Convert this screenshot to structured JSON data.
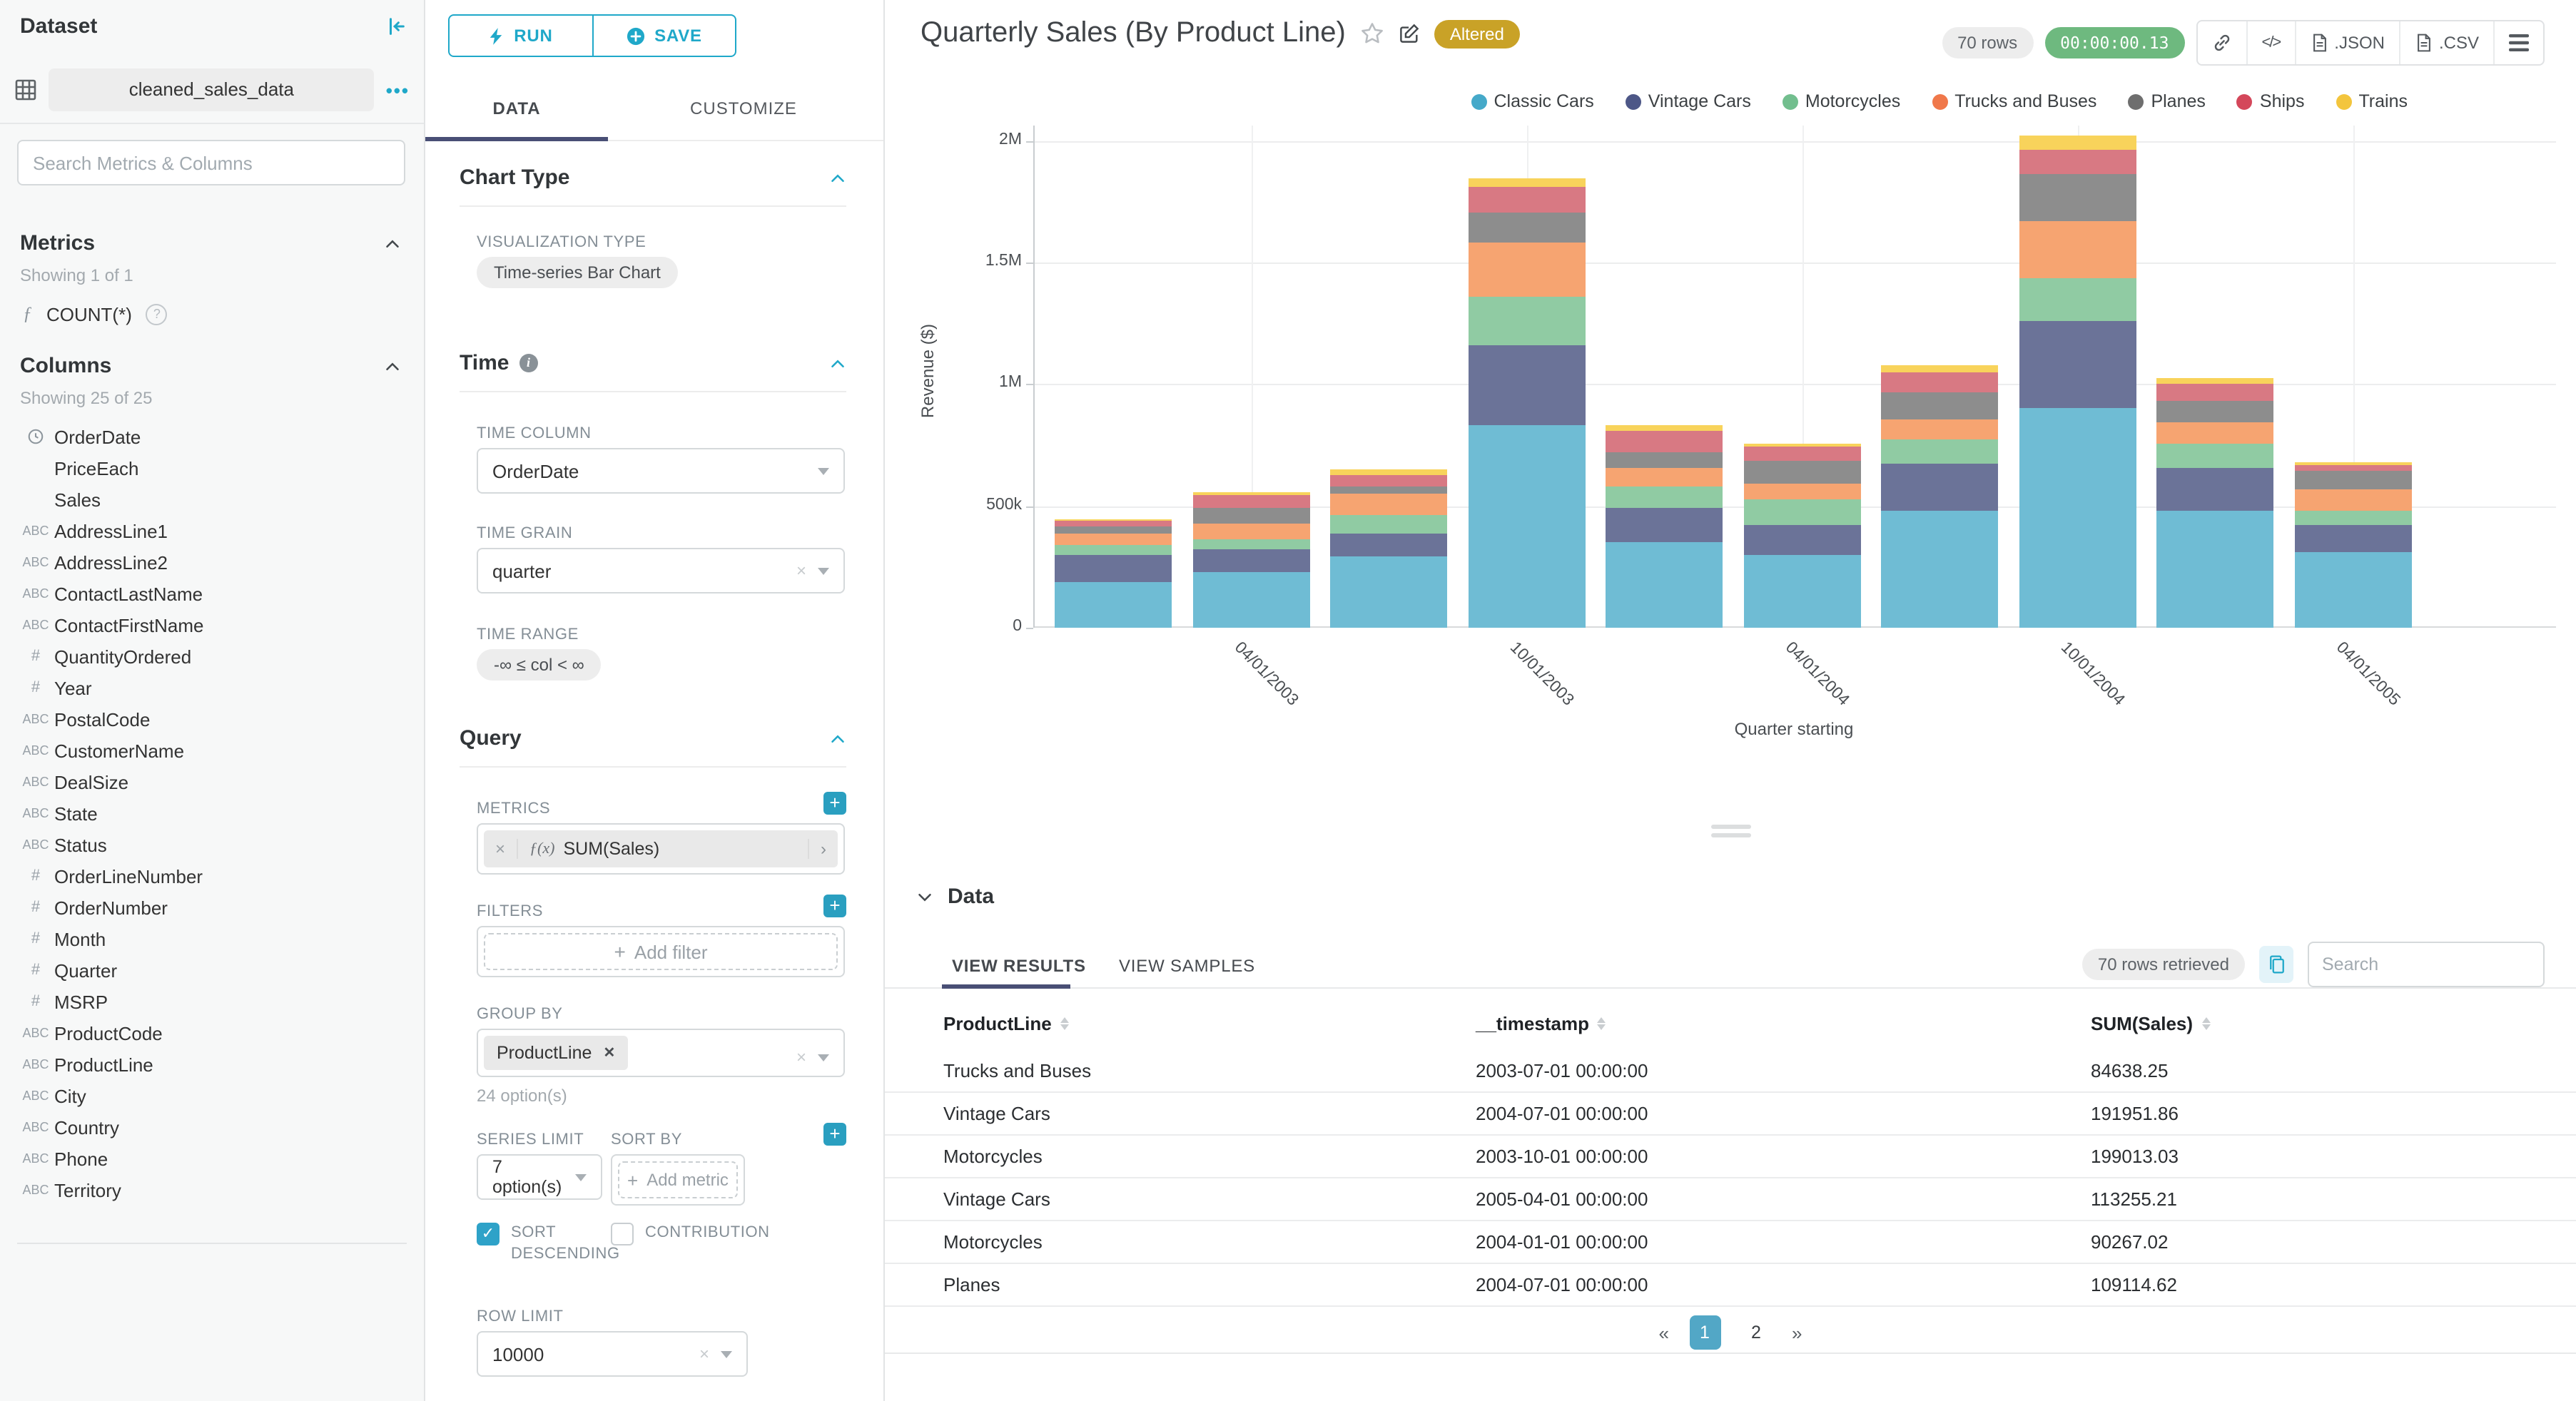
{
  "sidebar": {
    "title": "Dataset",
    "dataset_name": "cleaned_sales_data",
    "more_icon": "•••",
    "search_placeholder": "Search Metrics & Columns",
    "metrics": {
      "title": "Metrics",
      "showing": "Showing 1 of 1",
      "items": [
        {
          "type": "function",
          "label": "COUNT(*)",
          "help_glyph": "?"
        }
      ]
    },
    "columns": {
      "title": "Columns",
      "showing": "Showing 25 of 25",
      "items": [
        {
          "type": "time",
          "label": "OrderDate"
        },
        {
          "type": "none",
          "label": "PriceEach"
        },
        {
          "type": "none",
          "label": "Sales"
        },
        {
          "type": "str",
          "label": "AddressLine1"
        },
        {
          "type": "str",
          "label": "AddressLine2"
        },
        {
          "type": "str",
          "label": "ContactLastName"
        },
        {
          "type": "str",
          "label": "ContactFirstName"
        },
        {
          "type": "num",
          "label": "QuantityOrdered"
        },
        {
          "type": "num",
          "label": "Year"
        },
        {
          "type": "str",
          "label": "PostalCode"
        },
        {
          "type": "str",
          "label": "CustomerName"
        },
        {
          "type": "str",
          "label": "DealSize"
        },
        {
          "type": "str",
          "label": "State"
        },
        {
          "type": "str",
          "label": "Status"
        },
        {
          "type": "num",
          "label": "OrderLineNumber"
        },
        {
          "type": "num",
          "label": "OrderNumber"
        },
        {
          "type": "num",
          "label": "Month"
        },
        {
          "type": "num",
          "label": "Quarter"
        },
        {
          "type": "num",
          "label": "MSRP"
        },
        {
          "type": "str",
          "label": "ProductCode"
        },
        {
          "type": "str",
          "label": "ProductLine"
        },
        {
          "type": "str",
          "label": "City"
        },
        {
          "type": "str",
          "label": "Country"
        },
        {
          "type": "str",
          "label": "Phone"
        },
        {
          "type": "str",
          "label": "Territory"
        }
      ],
      "str_icon": "ABC",
      "num_icon": "#"
    }
  },
  "controls": {
    "run_label": "RUN",
    "save_label": "SAVE",
    "tab_data": "DATA",
    "tab_customize": "CUSTOMIZE",
    "chart_type": {
      "title": "Chart Type",
      "viz_type_label": "VISUALIZATION TYPE",
      "viz_type": "Time-series Bar Chart"
    },
    "time": {
      "title": "Time",
      "info_glyph": "i",
      "time_column_label": "TIME COLUMN",
      "time_column": "OrderDate",
      "time_grain_label": "TIME GRAIN",
      "time_grain": "quarter",
      "time_range_label": "TIME RANGE",
      "time_range": "-∞ ≤ col < ∞"
    },
    "query": {
      "title": "Query",
      "metrics_label": "METRICS",
      "metric_fx": "ƒ(x)",
      "metric": "SUM(Sales)",
      "filters_label": "FILTERS",
      "add_filter": "Add filter",
      "group_by_label": "GROUP BY",
      "group_by_value": "ProductLine",
      "group_by_options": "24 option(s)",
      "series_limit_label": "SERIES LIMIT",
      "series_limit": "7 option(s)",
      "sort_by_label": "SORT BY",
      "add_metric": "Add metric",
      "sort_descending_label": "SORT DESCENDING",
      "contribution_label": "CONTRIBUTION",
      "row_limit_label": "ROW LIMIT",
      "row_limit": "10000"
    }
  },
  "header": {
    "title": "Quarterly Sales (By Product Line)",
    "badge": "Altered",
    "rows_pill": "70 rows",
    "timer": "00:00:00.13",
    "code_glyph": "</>",
    "export_json": ".JSON",
    "export_csv": ".CSV"
  },
  "chart_data": {
    "type": "bar",
    "stacked": true,
    "title": "Quarterly Sales (By Product Line)",
    "xlabel": "Quarter starting",
    "ylabel": "Revenue ($)",
    "grid": true,
    "legend_position": "top-right",
    "x": [
      "2003-01-01",
      "2003-04-01",
      "2003-07-01",
      "2003-10-01",
      "2004-01-01",
      "2004-04-01",
      "2004-07-01",
      "2004-10-01",
      "2005-01-01",
      "2005-04-01"
    ],
    "x_tick_labels": [
      "04/01/2003",
      "10/01/2003",
      "04/01/2004",
      "10/01/2004",
      "04/01/2005"
    ],
    "y_ticks": [
      "0",
      "500k",
      "1M",
      "1.5M",
      "2M"
    ],
    "y_tick_values": [
      0,
      500000,
      1000000,
      1500000,
      2000000
    ],
    "ylim": [
      0,
      2000000
    ],
    "series": [
      {
        "name": "Classic Cars",
        "legend_color": "#45A9C9",
        "bar_color": "#6FBCD4",
        "values": [
          190000,
          230000,
          295000,
          830000,
          350000,
          300000,
          480000,
          900000,
          480000,
          310000
        ]
      },
      {
        "name": "Vintage Cars",
        "legend_color": "#4D5787",
        "bar_color": "#6B7398",
        "values": [
          110000,
          90000,
          90000,
          330000,
          140000,
          120000,
          191951.86,
          360000,
          175000,
          113255.21
        ]
      },
      {
        "name": "Motorcycles",
        "legend_color": "#72BE8E",
        "bar_color": "#90CBA3",
        "values": [
          40000,
          42000,
          80000,
          199013.03,
          90267.02,
          110000,
          100000,
          176000,
          100000,
          55000
        ]
      },
      {
        "name": "Trucks and Buses",
        "legend_color": "#F0784A",
        "bar_color": "#F6A471",
        "values": [
          45000,
          66000,
          84638.25,
          225000,
          75000,
          62000,
          85000,
          234000,
          90000,
          90000
        ]
      },
      {
        "name": "Planes",
        "legend_color": "#6E6E6E",
        "bar_color": "#8D8D8D",
        "values": [
          30000,
          61000,
          30000,
          120000,
          65000,
          95000,
          109114.62,
          190000,
          85000,
          75000
        ]
      },
      {
        "name": "Ships",
        "legend_color": "#D4475A",
        "bar_color": "#D87983",
        "values": [
          22000,
          56000,
          45000,
          105000,
          90000,
          55000,
          80000,
          102000,
          70000,
          25000
        ]
      },
      {
        "name": "Trains",
        "legend_color": "#F3C53D",
        "bar_color": "#F8D35B",
        "values": [
          6000,
          14000,
          25000,
          35000,
          20000,
          13000,
          30000,
          58000,
          25000,
          10000
        ]
      }
    ]
  },
  "data_panel": {
    "title": "Data",
    "tab_results": "VIEW RESULTS",
    "tab_samples": "VIEW SAMPLES",
    "rows_retrieved": "70 rows retrieved",
    "search_placeholder": "Search",
    "table": {
      "columns": [
        "ProductLine",
        "__timestamp",
        "SUM(Sales)"
      ],
      "rows": [
        [
          "Trucks and Buses",
          "2003-07-01 00:00:00",
          "84638.25"
        ],
        [
          "Vintage Cars",
          "2004-07-01 00:00:00",
          "191951.86"
        ],
        [
          "Motorcycles",
          "2003-10-01 00:00:00",
          "199013.03"
        ],
        [
          "Vintage Cars",
          "2005-04-01 00:00:00",
          "113255.21"
        ],
        [
          "Motorcycles",
          "2004-01-01 00:00:00",
          "90267.02"
        ],
        [
          "Planes",
          "2004-07-01 00:00:00",
          "109114.62"
        ]
      ]
    },
    "pagination": {
      "prev": "«",
      "pages": [
        "1",
        "2"
      ],
      "active": "1",
      "next": "»"
    }
  }
}
